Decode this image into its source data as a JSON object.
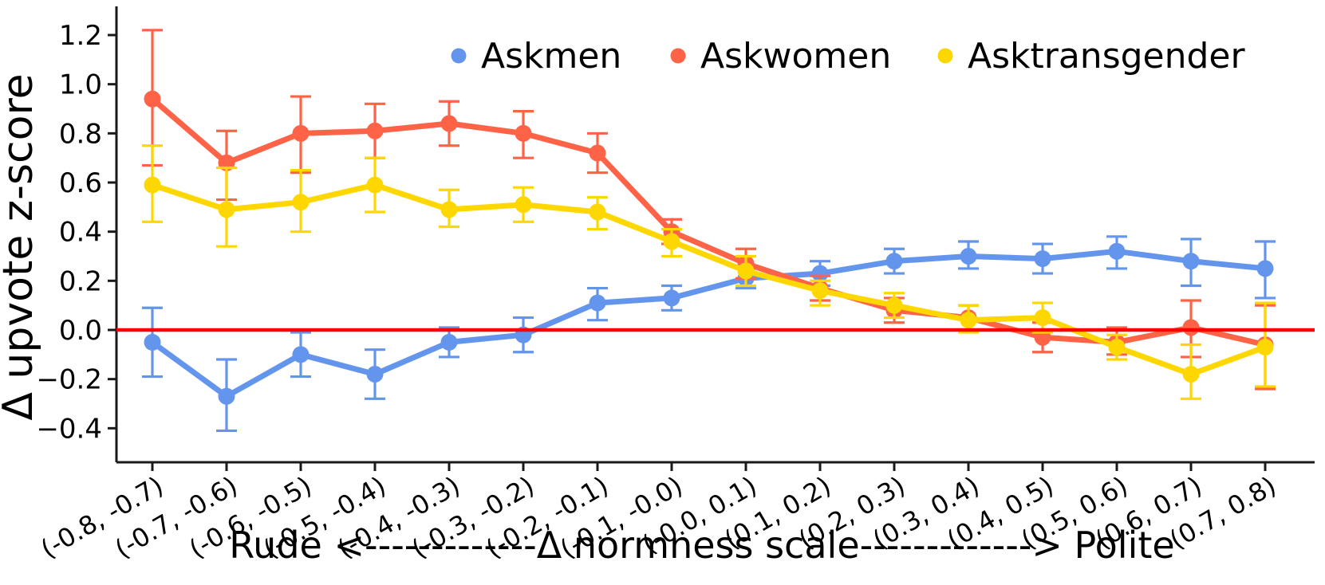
{
  "chart_data": {
    "type": "line",
    "title": "",
    "ylabel": "Δ upvote z-score",
    "xlabel": "Rude <-------------Δ normness scale-------------> Polite",
    "ylim": [
      -0.54,
      1.32
    ],
    "yticks": [
      1.2,
      1.0,
      0.8,
      0.6,
      0.4,
      0.2,
      0.0,
      -0.2,
      -0.4
    ],
    "grid": false,
    "legend_position": "top-center",
    "zero_line": {
      "y": 0.0,
      "color": "#FF0000"
    },
    "categories": [
      "(-0.8, -0.7)",
      "(-0.7, -0.6)",
      "(-0.6, -0.5)",
      "(-0.5, -0.4)",
      "(-0.4, -0.3)",
      "(-0.3, -0.2)",
      "(-0.2, -0.1)",
      "(-0.1, -0.0)",
      "(-0.0, 0.1)",
      "(0.1, 0.2)",
      "(0.2, 0.3)",
      "(0.3, 0.4)",
      "(0.4, 0.5)",
      "(0.5, 0.6)",
      "(0.6, 0.7)",
      "(0.7, 0.8)"
    ],
    "series": [
      {
        "name": "Askmen",
        "color": "#6495ED",
        "values": [
          -0.05,
          -0.27,
          -0.1,
          -0.18,
          -0.05,
          -0.02,
          0.11,
          0.13,
          0.21,
          0.23,
          0.28,
          0.3,
          0.29,
          0.32,
          0.28,
          0.25
        ],
        "err_lo": [
          -0.19,
          -0.41,
          -0.19,
          -0.28,
          -0.11,
          -0.09,
          0.04,
          0.08,
          0.17,
          0.18,
          0.23,
          0.25,
          0.23,
          0.25,
          0.18,
          0.13
        ],
        "err_hi": [
          0.09,
          -0.12,
          -0.01,
          -0.08,
          0.01,
          0.05,
          0.17,
          0.18,
          0.25,
          0.28,
          0.33,
          0.36,
          0.35,
          0.38,
          0.37,
          0.36
        ]
      },
      {
        "name": "Askwomen",
        "color": "#FF6347",
        "values": [
          0.94,
          0.68,
          0.8,
          0.81,
          0.84,
          0.8,
          0.72,
          0.4,
          0.27,
          0.17,
          0.08,
          0.05,
          -0.03,
          -0.05,
          0.01,
          -0.06
        ],
        "err_lo": [
          0.67,
          0.53,
          0.64,
          0.7,
          0.75,
          0.7,
          0.64,
          0.35,
          0.21,
          0.12,
          0.03,
          0.0,
          -0.09,
          -0.1,
          -0.11,
          -0.24
        ],
        "err_hi": [
          1.22,
          0.81,
          0.95,
          0.92,
          0.93,
          0.89,
          0.8,
          0.45,
          0.33,
          0.22,
          0.13,
          0.1,
          0.03,
          0.01,
          0.12,
          0.1
        ]
      },
      {
        "name": "Asktransgender",
        "color": "#FFD700",
        "values": [
          0.59,
          0.49,
          0.52,
          0.59,
          0.49,
          0.51,
          0.48,
          0.36,
          0.24,
          0.16,
          0.1,
          0.04,
          0.05,
          -0.07,
          -0.18,
          -0.07
        ],
        "err_lo": [
          0.44,
          0.34,
          0.4,
          0.48,
          0.42,
          0.44,
          0.41,
          0.3,
          0.18,
          0.1,
          0.05,
          -0.01,
          -0.01,
          -0.12,
          -0.28,
          -0.23
        ],
        "err_hi": [
          0.75,
          0.66,
          0.65,
          0.7,
          0.57,
          0.58,
          0.54,
          0.41,
          0.3,
          0.2,
          0.15,
          0.1,
          0.11,
          -0.02,
          -0.06,
          0.11
        ]
      }
    ]
  }
}
